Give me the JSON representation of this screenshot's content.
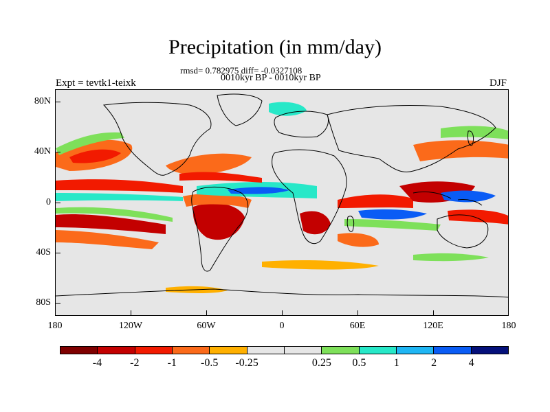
{
  "title": "Precipitation (in mm/day)",
  "stats_line": "rmsd= 0.782975 diff= -0.0327108",
  "period_line": "0010kyr BP - 0010kyr BP",
  "left_label": "Expt = tevtk1-teixk",
  "right_label": "DJF",
  "y_ticks": [
    "80N",
    "40N",
    "0",
    "40S",
    "80S"
  ],
  "x_ticks": [
    "180",
    "120W",
    "60W",
    "0",
    "60E",
    "120E",
    "180"
  ],
  "colorbar": {
    "colors": [
      "#7f0000",
      "#c30000",
      "#f21a00",
      "#fb6a1a",
      "#ffb000",
      "#e6e6e6",
      "#e6e6e6",
      "#7ee05a",
      "#27e8c8",
      "#1fb6f4",
      "#0a5cf5",
      "#04107a"
    ],
    "labels": [
      "-4",
      "-2",
      "-1",
      "-0.5",
      "-0.25",
      "0.25",
      "0.5",
      "1",
      "2",
      "4"
    ]
  },
  "map_colors": {
    "background": "#e6e6e6",
    "dark_red": "#c30000",
    "red": "#f21a00",
    "orange": "#fb6a1a",
    "light_orange": "#ffb000",
    "green": "#7ee05a",
    "cyan": "#27e8c8",
    "light_blue": "#1fb6f4",
    "blue": "#0a5cf5",
    "navy": "#04107a"
  }
}
